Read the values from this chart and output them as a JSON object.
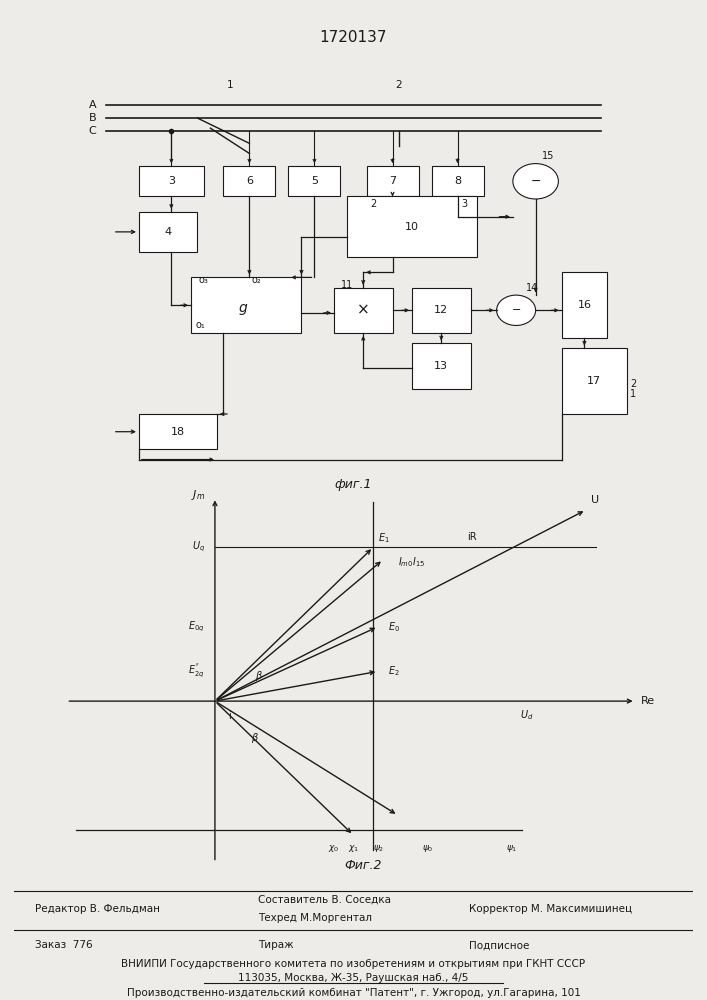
{
  "title": "1720137",
  "fig1_caption": "фиг.1",
  "fig2_caption": "Фиг.2",
  "background_color": "#eeece8",
  "line_color": "#1a1a1a",
  "text_color": "#1a1a1a",
  "title_fontsize": 11,
  "label_fontsize": 8,
  "small_fontsize": 7,
  "bottom_text_line1": "Составитель В. Соседка",
  "bottom_text_line2": "Техред М.Моргентал",
  "bottom_text_line3": "Корректор М. Максимишинец",
  "bottom_text_editor": "Редактор В. Фельдман",
  "bottom_text_order": "Заказ  776",
  "bottom_text_tirazh": "Тираж",
  "bottom_text_podpis": "Подписное",
  "bottom_text_vniip1": "ВНИИПИ Государственного комитета по изобретениям и открытиям при ГКНТ СССР",
  "bottom_text_vniip2": "113035, Москва, Ж-35, Раушская наб., 4/5",
  "bottom_text_patent": "Производственно-издательский комбинат \"Патент\", г. Ужгород, ул.Гагарина, 101"
}
